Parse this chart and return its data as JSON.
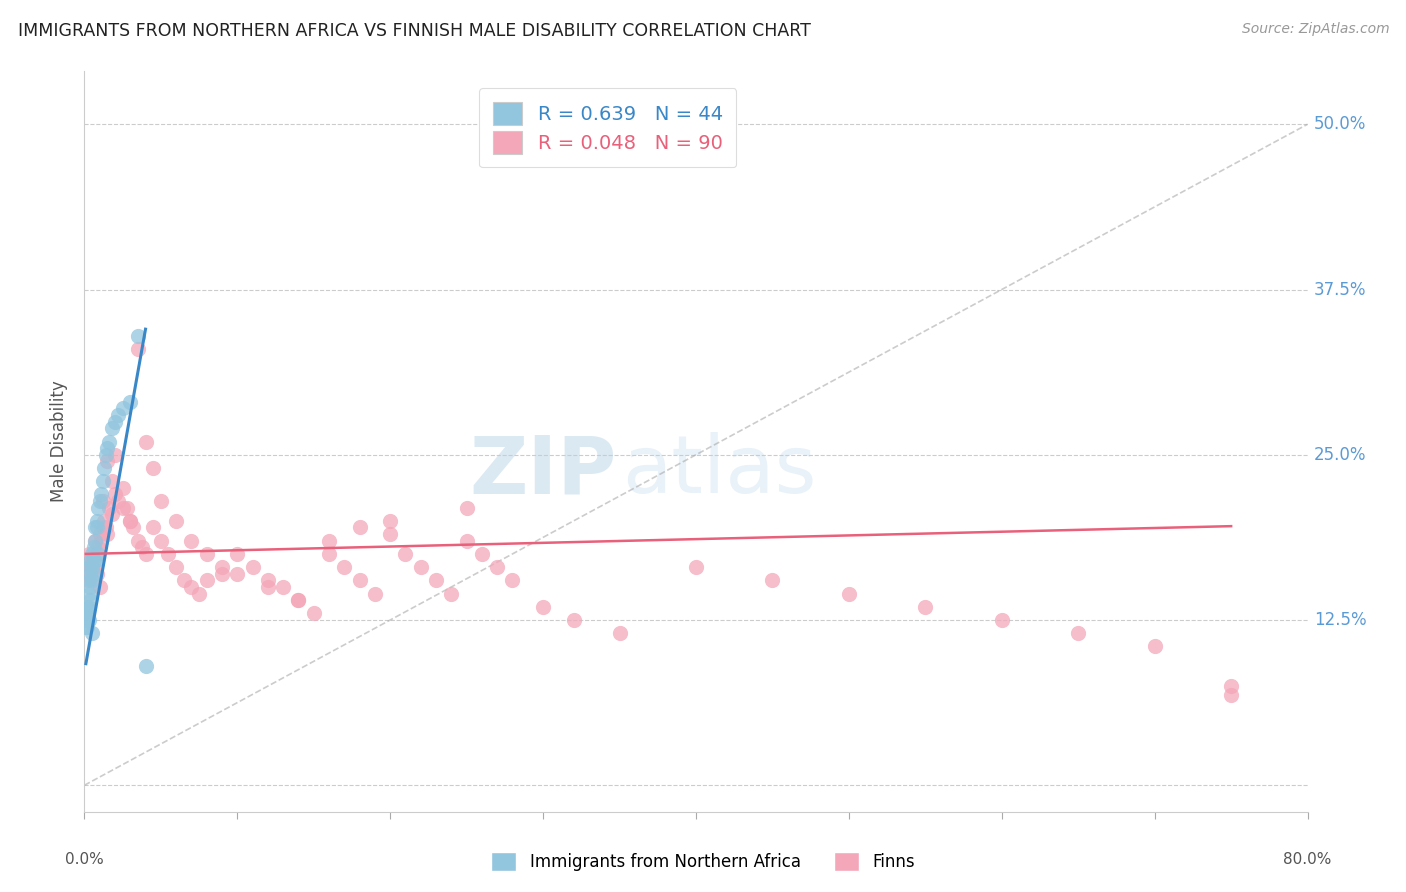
{
  "title": "IMMIGRANTS FROM NORTHERN AFRICA VS FINNISH MALE DISABILITY CORRELATION CHART",
  "source": "Source: ZipAtlas.com",
  "ylabel": "Male Disability",
  "yticks": [
    0.0,
    0.125,
    0.25,
    0.375,
    0.5
  ],
  "ytick_labels": [
    "",
    "12.5%",
    "25.0%",
    "37.5%",
    "50.0%"
  ],
  "xlim": [
    0.0,
    0.8
  ],
  "ylim": [
    -0.02,
    0.54
  ],
  "legend_label_blue": "Immigrants from Northern Africa",
  "legend_label_pink": "Finns",
  "legend_r_blue": "R = 0.639   N = 44",
  "legend_r_pink": "R = 0.048   N = 90",
  "blue_color": "#92c5de",
  "pink_color": "#f4a7b9",
  "blue_line_color": "#3a87c8",
  "pink_line_color": "#e8607a",
  "watermark_zip": "ZIP",
  "watermark_atlas": "atlas",
  "blue_scatter_x": [
    0.001,
    0.001,
    0.001,
    0.002,
    0.002,
    0.002,
    0.002,
    0.003,
    0.003,
    0.003,
    0.003,
    0.003,
    0.004,
    0.004,
    0.004,
    0.004,
    0.005,
    0.005,
    0.005,
    0.005,
    0.006,
    0.006,
    0.006,
    0.007,
    0.007,
    0.007,
    0.008,
    0.008,
    0.009,
    0.009,
    0.01,
    0.011,
    0.012,
    0.013,
    0.014,
    0.015,
    0.016,
    0.018,
    0.02,
    0.022,
    0.025,
    0.03,
    0.035,
    0.04
  ],
  "blue_scatter_y": [
    0.13,
    0.125,
    0.12,
    0.135,
    0.13,
    0.125,
    0.12,
    0.165,
    0.155,
    0.145,
    0.135,
    0.125,
    0.17,
    0.16,
    0.15,
    0.14,
    0.175,
    0.165,
    0.155,
    0.115,
    0.18,
    0.17,
    0.16,
    0.195,
    0.185,
    0.17,
    0.2,
    0.195,
    0.21,
    0.175,
    0.215,
    0.22,
    0.23,
    0.24,
    0.25,
    0.255,
    0.26,
    0.27,
    0.275,
    0.28,
    0.285,
    0.29,
    0.34,
    0.09
  ],
  "pink_scatter_x": [
    0.001,
    0.002,
    0.003,
    0.004,
    0.005,
    0.006,
    0.007,
    0.008,
    0.009,
    0.01,
    0.011,
    0.012,
    0.013,
    0.014,
    0.015,
    0.016,
    0.018,
    0.02,
    0.022,
    0.025,
    0.028,
    0.03,
    0.032,
    0.035,
    0.038,
    0.04,
    0.045,
    0.05,
    0.055,
    0.06,
    0.065,
    0.07,
    0.075,
    0.08,
    0.09,
    0.1,
    0.11,
    0.12,
    0.13,
    0.14,
    0.15,
    0.16,
    0.17,
    0.18,
    0.19,
    0.2,
    0.21,
    0.22,
    0.23,
    0.24,
    0.25,
    0.26,
    0.27,
    0.28,
    0.3,
    0.32,
    0.35,
    0.4,
    0.45,
    0.5,
    0.55,
    0.6,
    0.65,
    0.7,
    0.75,
    0.005,
    0.008,
    0.01,
    0.012,
    0.015,
    0.018,
    0.02,
    0.025,
    0.03,
    0.035,
    0.04,
    0.045,
    0.05,
    0.06,
    0.07,
    0.08,
    0.09,
    0.1,
    0.12,
    0.14,
    0.16,
    0.18,
    0.2,
    0.25,
    0.75
  ],
  "pink_scatter_y": [
    0.16,
    0.155,
    0.175,
    0.165,
    0.17,
    0.165,
    0.185,
    0.175,
    0.18,
    0.19,
    0.185,
    0.195,
    0.2,
    0.195,
    0.19,
    0.21,
    0.205,
    0.22,
    0.215,
    0.225,
    0.21,
    0.2,
    0.195,
    0.185,
    0.18,
    0.175,
    0.195,
    0.185,
    0.175,
    0.165,
    0.155,
    0.15,
    0.145,
    0.155,
    0.16,
    0.175,
    0.165,
    0.155,
    0.15,
    0.14,
    0.13,
    0.175,
    0.165,
    0.155,
    0.145,
    0.19,
    0.175,
    0.165,
    0.155,
    0.145,
    0.185,
    0.175,
    0.165,
    0.155,
    0.135,
    0.125,
    0.115,
    0.165,
    0.155,
    0.145,
    0.135,
    0.125,
    0.115,
    0.105,
    0.075,
    0.17,
    0.16,
    0.15,
    0.215,
    0.245,
    0.23,
    0.25,
    0.21,
    0.2,
    0.33,
    0.26,
    0.24,
    0.215,
    0.2,
    0.185,
    0.175,
    0.165,
    0.16,
    0.15,
    0.14,
    0.185,
    0.195,
    0.2,
    0.21,
    0.068
  ],
  "blue_line_x": [
    0.001,
    0.04
  ],
  "blue_line_y": [
    0.092,
    0.345
  ],
  "pink_line_x": [
    0.001,
    0.75
  ],
  "pink_line_y": [
    0.175,
    0.196
  ],
  "diag_line_x": [
    0.0,
    0.8
  ],
  "diag_line_y": [
    0.0,
    0.5
  ]
}
